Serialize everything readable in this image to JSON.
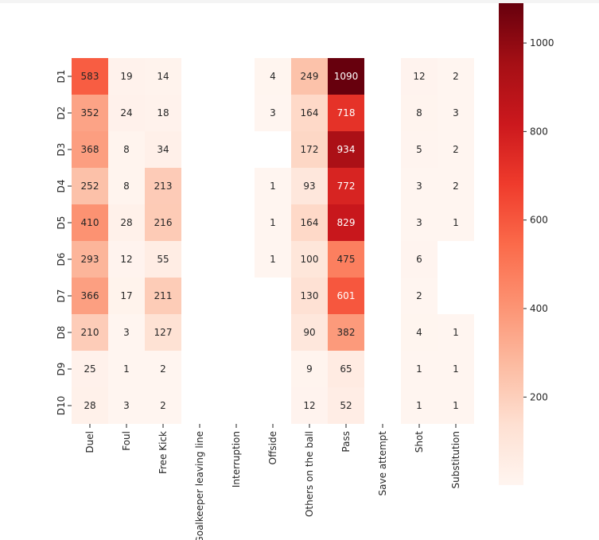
{
  "chart_data": {
    "type": "heatmap",
    "colormap": "Reds",
    "rows": [
      "D1",
      "D2",
      "D3",
      "D4",
      "D5",
      "D6",
      "D7",
      "D8",
      "D9",
      "D10"
    ],
    "columns": [
      "Duel",
      "Foul",
      "Free Kick",
      "Goalkeeper leaving line",
      "Interruption",
      "Offside",
      "Others on the ball",
      "Pass",
      "Save attempt",
      "Shot",
      "Substitution"
    ],
    "values": [
      [
        583,
        19,
        14,
        null,
        null,
        4,
        249,
        1090,
        null,
        12,
        2
      ],
      [
        352,
        24,
        18,
        null,
        null,
        3,
        164,
        718,
        null,
        8,
        3
      ],
      [
        368,
        8,
        34,
        null,
        null,
        null,
        172,
        934,
        null,
        5,
        2
      ],
      [
        252,
        8,
        213,
        null,
        null,
        1,
        93,
        772,
        null,
        3,
        2
      ],
      [
        410,
        28,
        216,
        null,
        null,
        1,
        164,
        829,
        null,
        3,
        1
      ],
      [
        293,
        12,
        55,
        null,
        null,
        1,
        100,
        475,
        null,
        6,
        null
      ],
      [
        366,
        17,
        211,
        null,
        null,
        null,
        130,
        601,
        null,
        2,
        null
      ],
      [
        210,
        3,
        127,
        null,
        null,
        null,
        90,
        382,
        null,
        4,
        1
      ],
      [
        25,
        1,
        2,
        null,
        null,
        null,
        9,
        65,
        null,
        1,
        1
      ],
      [
        28,
        3,
        2,
        null,
        null,
        null,
        12,
        52,
        null,
        1,
        1
      ]
    ],
    "colorbar": {
      "vmin": 1,
      "vmax": 1090,
      "ticks": [
        200,
        400,
        600,
        800,
        1000
      ]
    },
    "title": "",
    "xlabel": "",
    "ylabel": ""
  }
}
